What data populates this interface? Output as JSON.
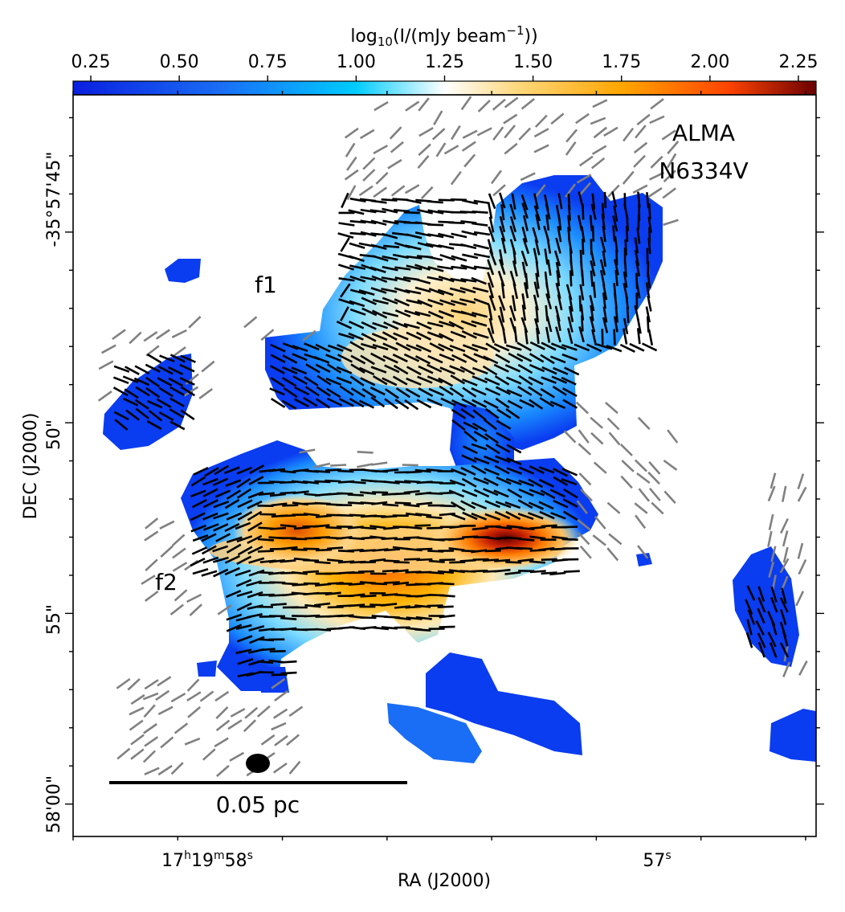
{
  "chart_data": {
    "type": "heatmap",
    "title": "",
    "xlabel": "RA (J2000)",
    "ylabel": "DEC (J2000)",
    "colorbar": {
      "label": "log10(I/(mJy beam^-1))",
      "label_main": "log",
      "label_sub": "10",
      "label_body": "(I/(mJy beam",
      "label_sup": "−1",
      "label_close": "))",
      "range": [
        0.2,
        2.3
      ],
      "ticks": [
        "0.25",
        "0.50",
        "0.75",
        "1.00",
        "1.25",
        "1.50",
        "1.75",
        "2.00",
        "2.25"
      ],
      "tick_values": [
        0.25,
        0.5,
        0.75,
        1.0,
        1.25,
        1.5,
        1.75,
        2.0,
        2.25
      ],
      "colors": [
        "#0a1fe0",
        "#1a6ef5",
        "#00ccff",
        "#ffffff",
        "#ffd77a",
        "#ffa500",
        "#ff4500",
        "#6b0000"
      ]
    },
    "x_ticks": [
      {
        "main": "17",
        "h": "h",
        "m_val": "19",
        "m": "m",
        "s_val": "58",
        "s": "s",
        "ra_sec": 58.0
      },
      {
        "main": "57",
        "s": "s",
        "ra_sec": 57.0
      }
    ],
    "y_ticks": [
      {
        "label": "-35°57'45\"",
        "offset_arcsec": 45
      },
      {
        "label": "50\"",
        "offset_arcsec": 50
      },
      {
        "label": "55\"",
        "offset_arcsec": 55
      },
      {
        "label": "58'00\"",
        "offset_arcsec": 60
      }
    ],
    "xlim_ra_sec": [
      58.25,
      56.83
    ],
    "ylim_dec_offset_arcsec": [
      41.4,
      60.85
    ],
    "annotations": {
      "instrument": "ALMA",
      "source": "N6334V",
      "filament1": "f1",
      "filament2": "f2",
      "scalebar": "0.05 pc"
    },
    "polarization_segments": {
      "detected_color": "#000000",
      "tentative_color": "#808080"
    },
    "beam": "ellipse"
  }
}
